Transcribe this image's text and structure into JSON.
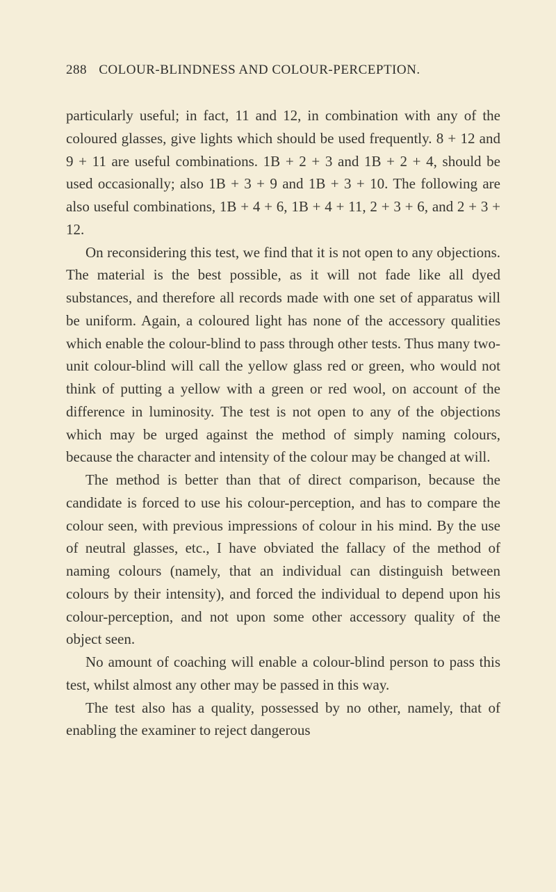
{
  "page": {
    "number": "288",
    "title": "COLOUR-BLINDNESS AND COLOUR-PERCEPTION.",
    "background_color": "#f5eed9",
    "text_color": "#363530",
    "header_fontsize": 19,
    "body_fontsize": 21,
    "line_height": 1.56
  },
  "paragraphs": {
    "p1": "particularly useful; in fact, 11 and 12, in combination with any of the coloured glasses, give lights which should be used frequently. 8 + 12 and 9 + 11 are useful combinations. 1B + 2 + 3 and 1B + 2 + 4, should be used occasionally; also 1B + 3 + 9 and 1B + 3 + 10. The following are also useful combinations, 1B + 4 + 6, 1B + 4 + 11, 2 + 3 + 6, and 2 + 3 + 12.",
    "p2": "On reconsidering this test, we find that it is not open to any objections. The material is the best possible, as it will not fade like all dyed substances, and therefore all records made with one set of apparatus will be uniform. Again, a coloured light has none of the accessory qualities which enable the colour-blind to pass through other tests. Thus many two-unit colour-blind will call the yellow glass red or green, who would not think of putting a yellow with a green or red wool, on account of the difference in luminosity. The test is not open to any of the objections which may be urged against the method of simply naming colours, because the character and intensity of the colour may be changed at will.",
    "p3": "The method is better than that of direct comparison, because the candidate is forced to use his colour-perception, and has to compare the colour seen, with previous impressions of colour in his mind. By the use of neutral glasses, etc., I have obviated the fallacy of the method of naming colours (namely, that an individual can distinguish between colours by their intensity), and forced the individual to depend upon his colour-perception, and not upon some other accessory quality of the object seen.",
    "p4": "No amount of coaching will enable a colour-blind person to pass this test, whilst almost any other may be passed in this way.",
    "p5": "The test also has a quality, possessed by no other, namely, that of enabling the examiner to reject dangerous"
  }
}
